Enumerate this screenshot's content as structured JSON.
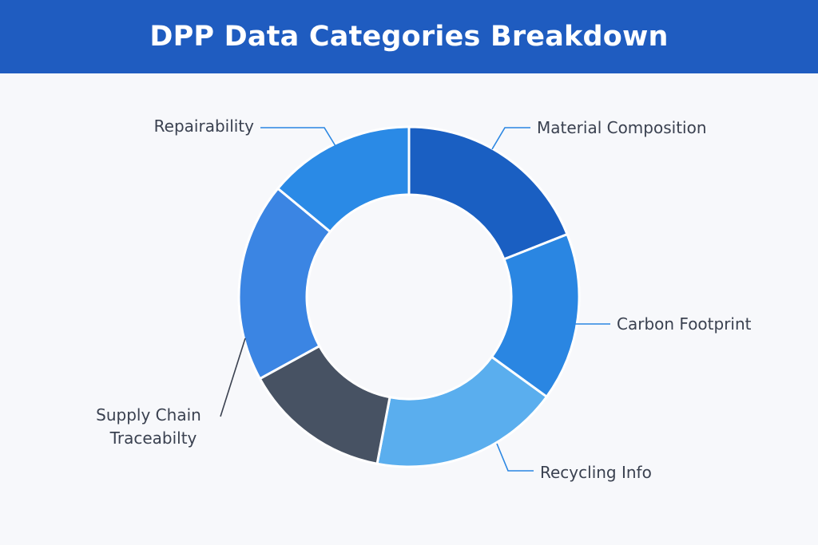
{
  "header": {
    "title": "DPP Data Categories Breakdown"
  },
  "chart_data": {
    "type": "pie",
    "title": "DPP Data Categories Breakdown",
    "donut": true,
    "slices": [
      {
        "label": "Material Composition",
        "lines": [
          "Material Composition"
        ],
        "value": 19,
        "color": "#1a5fc2"
      },
      {
        "label": "Carbon Footprint",
        "lines": [
          "Carbon Footprint"
        ],
        "value": 16,
        "color": "#2a86e2"
      },
      {
        "label": "Recycling Info",
        "lines": [
          "Recycling Info"
        ],
        "value": 18,
        "color": "#5aaeee"
      },
      {
        "label": "Supply Chain Traceabilty",
        "lines": [
          "Supply Chain",
          "Traceabilty"
        ],
        "value": 14,
        "color": "#475263"
      },
      {
        "label": "Supply Chain Traceabilty (2)",
        "lines": [],
        "value": 19,
        "color": "#3b85e3"
      },
      {
        "label": "Repairability",
        "lines": [
          "Repairability"
        ],
        "value": 14,
        "color": "#2a8ae6"
      }
    ]
  }
}
